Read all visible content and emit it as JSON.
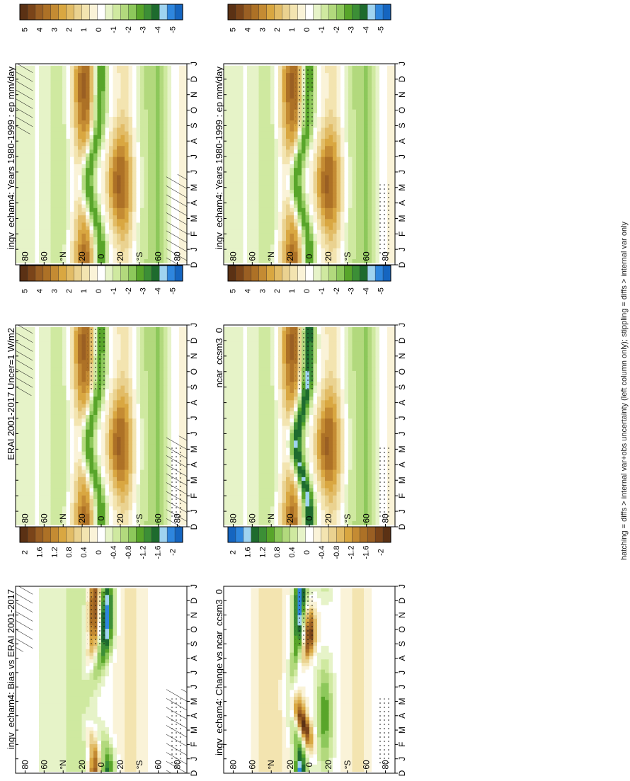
{
  "figure": {
    "caption": "hatching = diffs > internal var+obs uncertainty (left column only); stippling = diffs > internal var only"
  },
  "colors": {
    "wet_strong": "#1565c0",
    "wet": "#2e86de",
    "wet_light": "#9fd3f0",
    "green_dark": "#1e6b2e",
    "green": "#58a52a",
    "green_light": "#cfe9a0",
    "neutral": "#ffffff",
    "tan_light": "#f3e4b0",
    "tan": "#d9a741",
    "brown": "#9a5f23",
    "brown_dark": "#5b3114"
  },
  "chart_data": [
    {
      "id": "a",
      "type": "heatmap",
      "title": "ingv_echam4: Years 1980-1999 : ep mm/day",
      "field": "mean",
      "x_ticks": [
        "D",
        "J",
        "F",
        "M",
        "A",
        "M",
        "J",
        "J",
        "A",
        "S",
        "O",
        "N",
        "D",
        "J"
      ],
      "y_ticks": [
        "80",
        "60",
        "°N",
        "20",
        "0",
        "20",
        "°S",
        "60",
        "80"
      ],
      "ylim": [
        -90,
        90
      ],
      "colorbar": {
        "levels": [
          "5",
          "4",
          "3",
          "2",
          "1",
          "0",
          "-1",
          "-2",
          "-3",
          "-4",
          "-5"
        ],
        "scheme": "standard"
      },
      "hatching": true,
      "stippling": false
    },
    {
      "id": "b",
      "type": "heatmap",
      "title": "ingv_echam4: Years 1980-1999 : ep mm/day",
      "field": "mean",
      "x_ticks": [
        "D",
        "J",
        "F",
        "M",
        "A",
        "M",
        "J",
        "J",
        "A",
        "S",
        "O",
        "N",
        "D",
        "J"
      ],
      "y_ticks": [
        "80",
        "60",
        "°N",
        "20",
        "0",
        "20",
        "°S",
        "60",
        "80"
      ],
      "ylim": [
        -90,
        90
      ],
      "colorbar": {
        "levels": [
          "5",
          "4",
          "3",
          "2",
          "1",
          "0",
          "-1",
          "-2",
          "-3",
          "-4",
          "-5"
        ],
        "scheme": "standard"
      },
      "hatching": false,
      "stippling": true
    },
    {
      "id": "c",
      "type": "heatmap",
      "title": "ERAI 2001-2017 Uncer=1 W/m2",
      "field": "mean",
      "x_ticks": [
        "D",
        "J",
        "F",
        "M",
        "A",
        "M",
        "J",
        "J",
        "A",
        "S",
        "O",
        "N",
        "D",
        "J"
      ],
      "y_ticks": [
        "80",
        "60",
        "°N",
        "20",
        "0",
        "20",
        "°S",
        "60",
        "80"
      ],
      "ylim": [
        -90,
        90
      ],
      "colorbar": {
        "levels": [
          "5",
          "4",
          "3",
          "2",
          "1",
          "0",
          "-1",
          "-2",
          "-3",
          "-4",
          "-5"
        ],
        "scheme": "standard"
      },
      "hatching": true,
      "stippling": true
    },
    {
      "id": "d",
      "type": "heatmap",
      "title": "ncar_ccsm3_0",
      "field": "mean_alt",
      "x_ticks": [
        "D",
        "J",
        "F",
        "M",
        "A",
        "M",
        "J",
        "J",
        "A",
        "S",
        "O",
        "N",
        "D",
        "J"
      ],
      "y_ticks": [
        "80",
        "60",
        "°N",
        "20",
        "0",
        "20",
        "°S",
        "60",
        "80"
      ],
      "ylim": [
        -90,
        90
      ],
      "colorbar": {
        "levels": [
          "5",
          "4",
          "3",
          "2",
          "1",
          "0",
          "-1",
          "-2",
          "-3",
          "-4",
          "-5"
        ],
        "scheme": "standard"
      },
      "hatching": false,
      "stippling": true
    },
    {
      "id": "e",
      "type": "heatmap",
      "title": "ingv_echam4: Bias vs ERAI 2001-2017",
      "field": "bias",
      "x_ticks": [
        "D",
        "J",
        "F",
        "M",
        "A",
        "M",
        "J",
        "J",
        "A",
        "S",
        "O",
        "N",
        "D",
        "J"
      ],
      "y_ticks": [
        "80",
        "60",
        "°N",
        "20",
        "0",
        "20",
        "°S",
        "60",
        "80"
      ],
      "ylim": [
        -90,
        90
      ],
      "colorbar": {
        "levels": [
          "2",
          "1.6",
          "1.2",
          "0.8",
          "0.4",
          "0",
          "-0.4",
          "-0.8",
          "-1.2",
          "-1.6",
          "-2"
        ],
        "scheme": "standard"
      },
      "hatching": true,
      "stippling": true
    },
    {
      "id": "f",
      "type": "heatmap",
      "title": "ingv_echam4: Change vs ncar_ccsm3_0",
      "field": "change",
      "x_ticks": [
        "D",
        "J",
        "F",
        "M",
        "A",
        "M",
        "J",
        "J",
        "A",
        "S",
        "O",
        "N",
        "D",
        "J"
      ],
      "y_ticks": [
        "80",
        "60",
        "°N",
        "20",
        "0",
        "20",
        "°S",
        "60",
        "80"
      ],
      "ylim": [
        -90,
        90
      ],
      "colorbar": {
        "levels": [
          "2",
          "1.6",
          "1.2",
          "0.8",
          "0.4",
          "0",
          "-0.4",
          "-0.8",
          "-1.2",
          "-1.6",
          "-2"
        ],
        "scheme": "reversed"
      },
      "hatching": false,
      "stippling": true
    }
  ]
}
